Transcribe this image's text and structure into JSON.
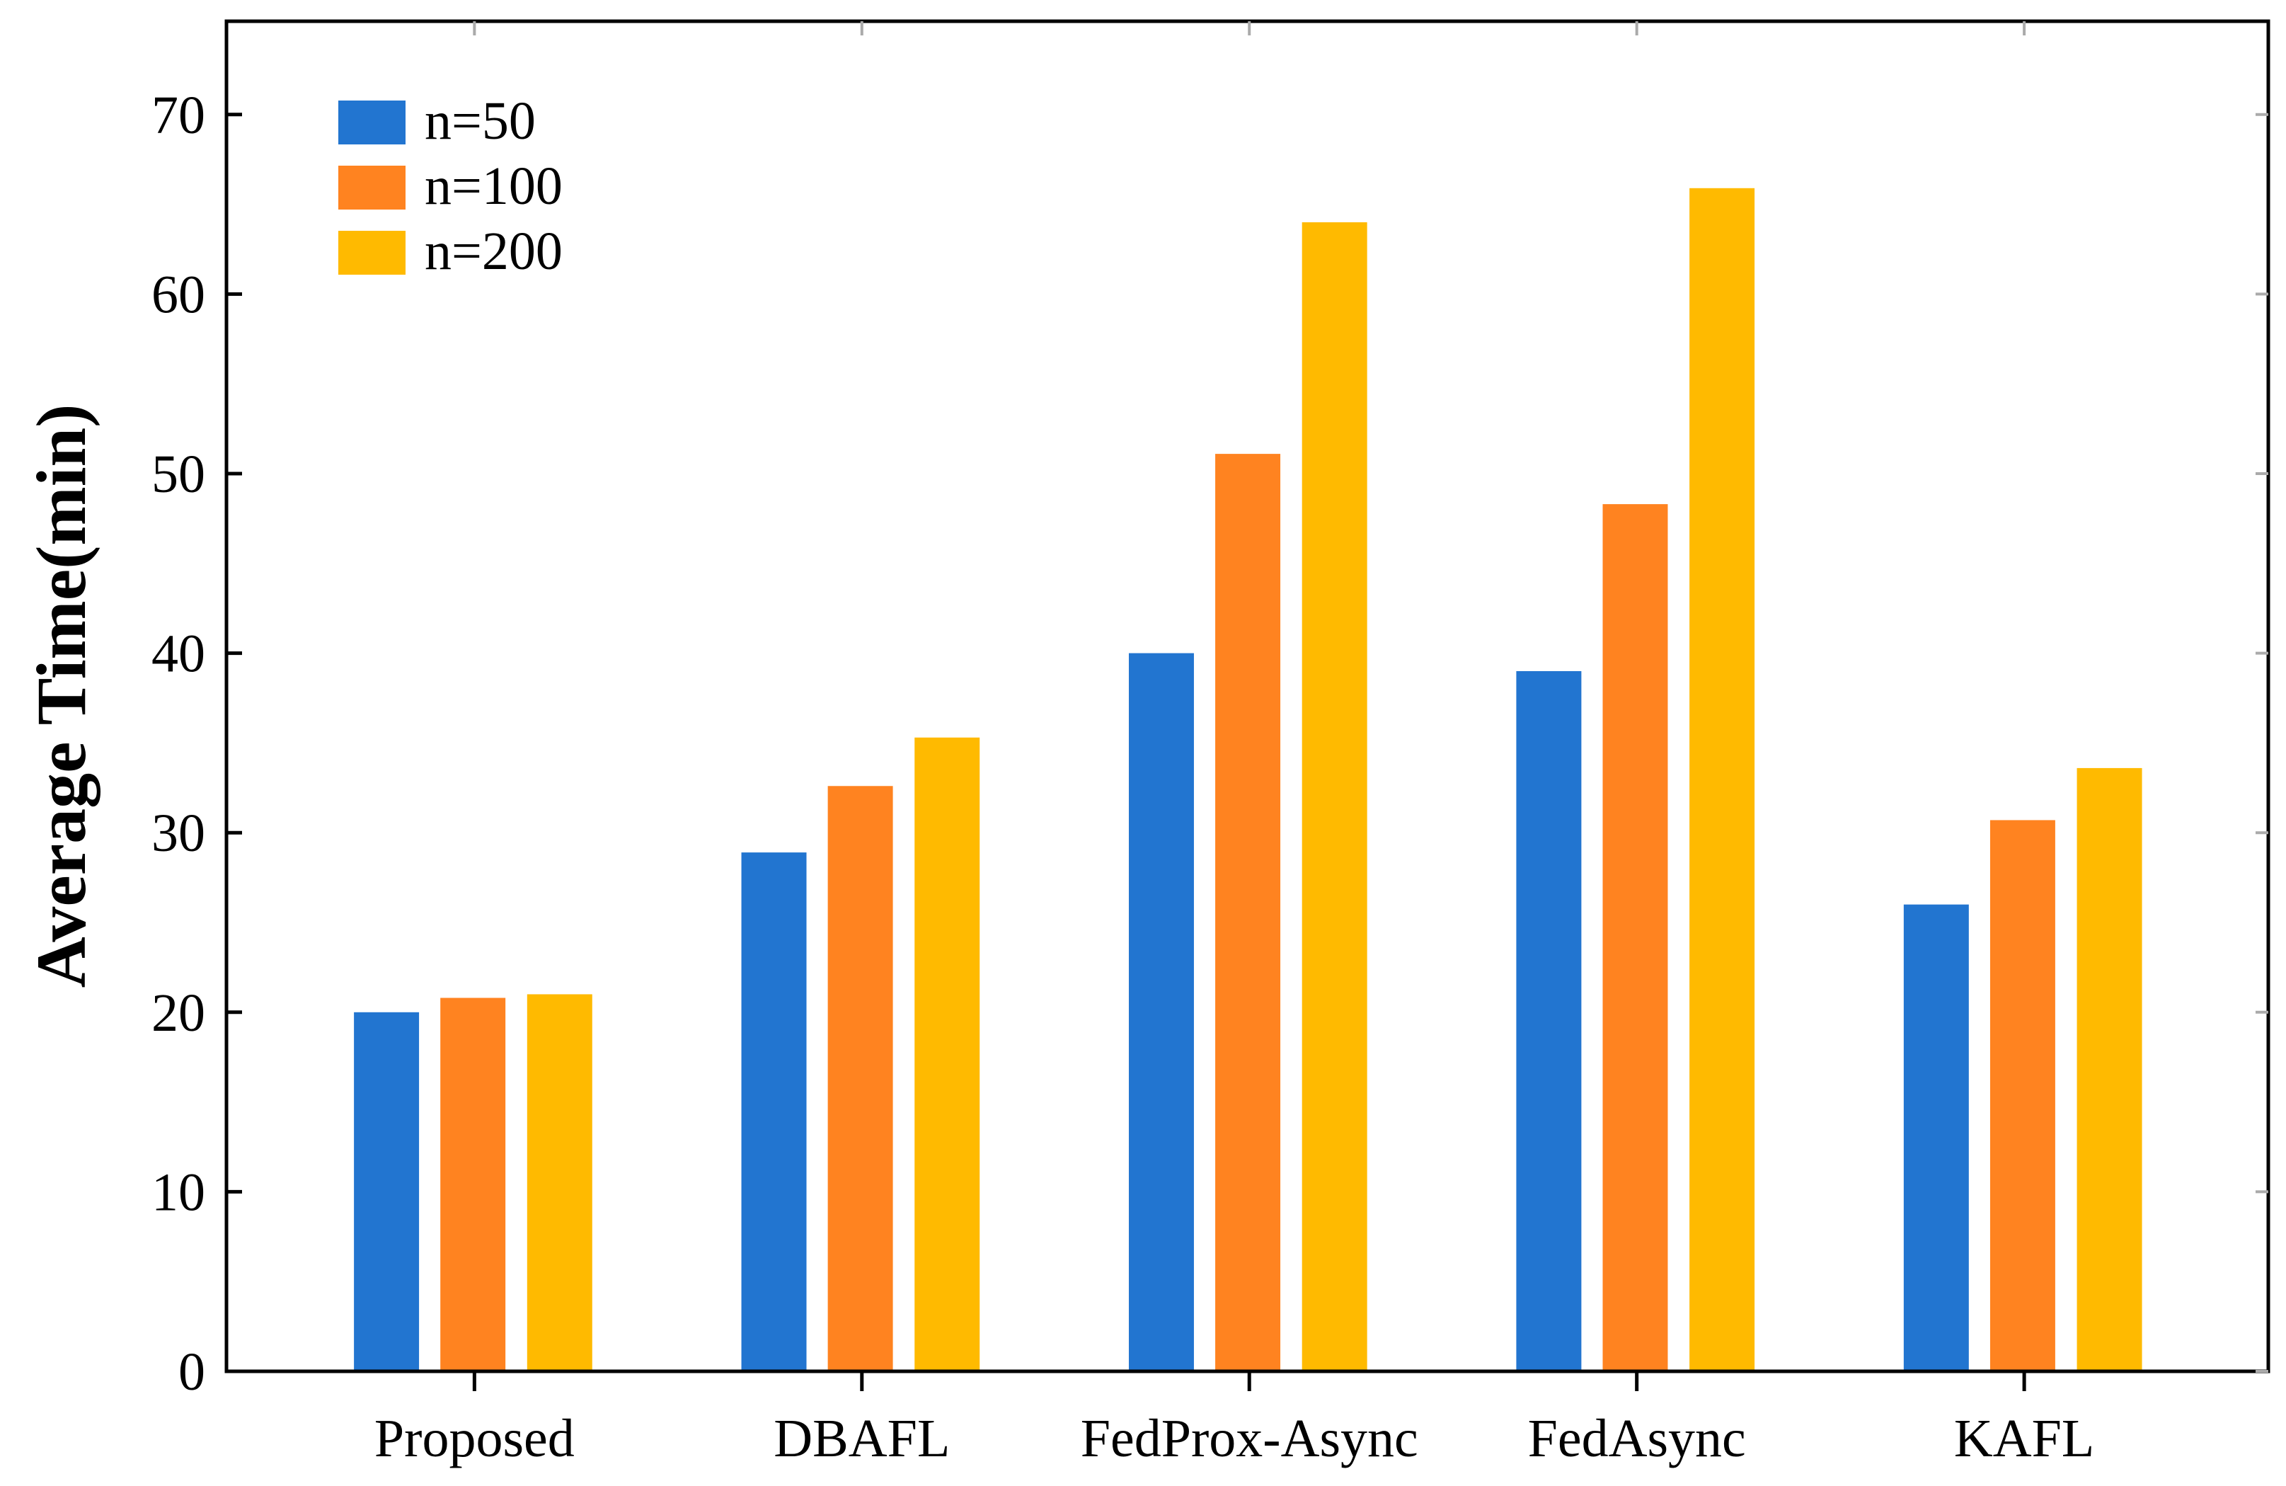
{
  "chart_data": {
    "type": "bar",
    "title": "",
    "xlabel": "",
    "ylabel": "Average Time(min)",
    "categories": [
      "Proposed",
      "DBAFL",
      "FedProx-Async",
      "FedAsync",
      "KAFL"
    ],
    "series": [
      {
        "name": "n=50",
        "color": "#2275D0",
        "values": [
          20.0,
          28.9,
          40.0,
          39.0,
          26.0
        ]
      },
      {
        "name": "n=100",
        "color": "#FF8320",
        "values": [
          20.8,
          32.6,
          51.1,
          48.3,
          30.7
        ]
      },
      {
        "name": "n=200",
        "color": "#FFBA00",
        "values": [
          21.0,
          35.3,
          64.0,
          65.9,
          33.6
        ]
      }
    ],
    "ylim": [
      0,
      75
    ],
    "yticks": [
      0,
      10,
      20,
      30,
      40,
      50,
      60,
      70
    ],
    "grid": false,
    "legend_position": "top-left"
  }
}
